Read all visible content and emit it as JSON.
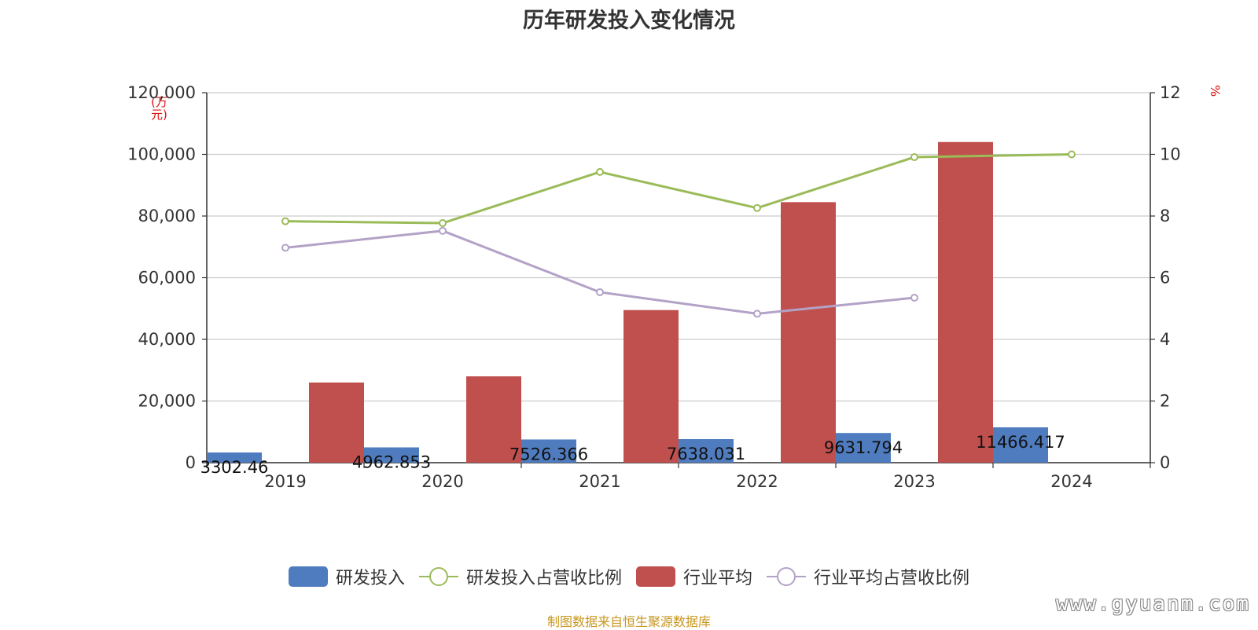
{
  "chart_data": {
    "type": "bar",
    "title": "历年研发投入变化情况",
    "left_unit": "(万元)",
    "right_unit": "%",
    "categories": [
      "2019",
      "2020",
      "2021",
      "2022",
      "2023",
      "2024"
    ],
    "y_left": {
      "min": 0,
      "max": 120000,
      "ticks": [
        "0",
        "20,000",
        "40,000",
        "60,000",
        "80,000",
        "100,000",
        "120,000"
      ]
    },
    "y_right": {
      "min": 0,
      "max": 12,
      "ticks": [
        "0",
        "2",
        "4",
        "6",
        "8",
        "10",
        "12"
      ]
    },
    "grid": true,
    "legend_position": "bottom",
    "series": [
      {
        "name": "研发投入",
        "type": "bar",
        "axis": "left",
        "color": "#4f7cbf",
        "values": [
          3302.46,
          4962.853,
          7526.366,
          7638.031,
          9631.794,
          11466.417
        ],
        "labels": [
          "3302.46",
          "4962.853",
          "7526.366",
          "7638.031",
          "9631.794",
          "11466.417"
        ]
      },
      {
        "name": "研发投入占营收比例",
        "type": "line",
        "axis": "right",
        "color": "#9bbb59",
        "values": [
          7.83,
          7.77,
          9.43,
          8.26,
          9.91,
          10.0
        ]
      },
      {
        "name": "行业平均",
        "type": "bar",
        "axis": "left",
        "color": "#c0504d",
        "values": [
          26000,
          28000,
          49500,
          84500,
          104000,
          null
        ]
      },
      {
        "name": "行业平均占营收比例",
        "type": "line",
        "axis": "right",
        "color": "#b3a2c7",
        "values": [
          6.97,
          7.52,
          5.53,
          4.83,
          5.35,
          null
        ]
      }
    ]
  },
  "source": "制图数据来自恒生聚源数据库",
  "watermark": "www.gyuanm.com"
}
